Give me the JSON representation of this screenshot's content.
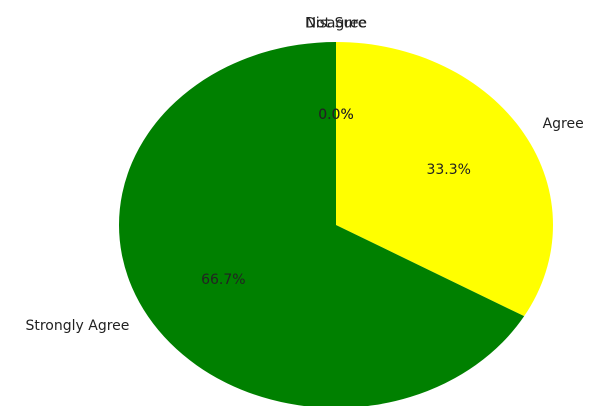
{
  "chart_data": {
    "type": "pie",
    "labels": [
      "Agree",
      "Strongly Agree",
      "Disagree",
      "Not Sure"
    ],
    "values": [
      33.3,
      66.7,
      0.0,
      0.0
    ],
    "pct_labels": [
      "33.3%",
      "66.7%",
      "0.0%",
      "0.0%"
    ],
    "colors": [
      "#ffff00",
      "#008000",
      "#1f77b4",
      "#ff7f0e"
    ],
    "start_angle_deg": 90,
    "direction": "clockwise"
  }
}
